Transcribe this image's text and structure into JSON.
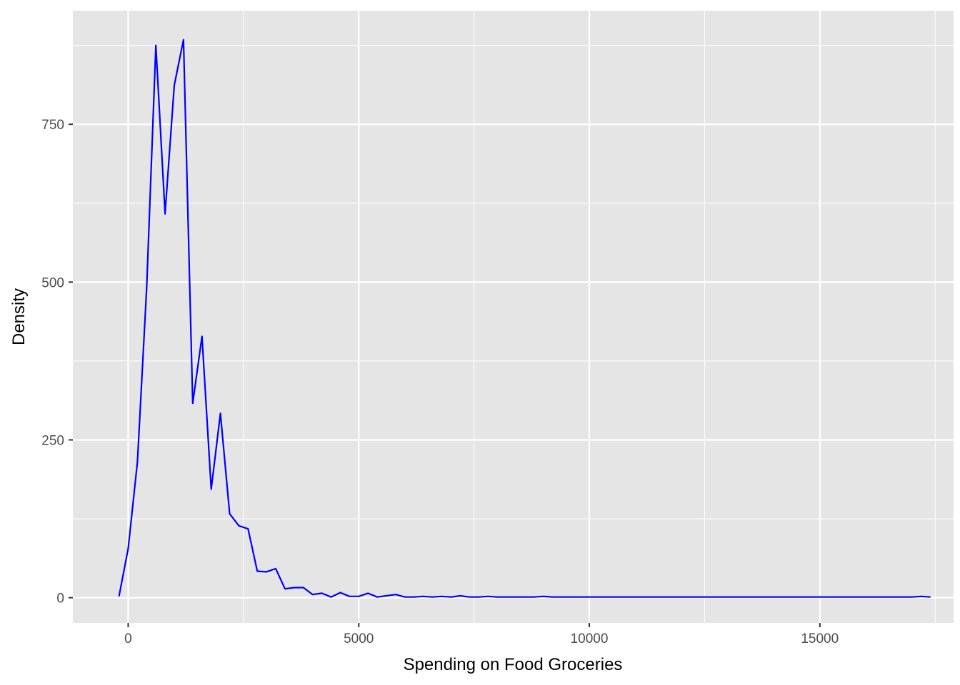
{
  "chart_data": {
    "type": "line",
    "title": "",
    "xlabel": "Spending on Food Groceries",
    "ylabel": "Density",
    "xlim": [
      -1200,
      17900
    ],
    "ylim": [
      -40,
      930
    ],
    "grid": true,
    "panel_background": "#e5e5e5",
    "grid_color": "#ffffff",
    "line_color": "#0000ff",
    "x_ticks": [
      0,
      5000,
      10000,
      15000
    ],
    "x_tick_labels": [
      "0",
      "5000",
      "10000",
      "15000"
    ],
    "y_ticks": [
      0,
      250,
      500,
      750
    ],
    "y_tick_labels": [
      "0",
      "250",
      "500",
      "750"
    ],
    "series": [
      {
        "x": [
          -200,
          0,
          200,
          400,
          600,
          800,
          1000,
          1200,
          1400,
          1600,
          1800,
          2000,
          2200,
          2400,
          2600,
          2800,
          3000,
          3200,
          3400,
          3600,
          3800,
          4000,
          4200,
          4400,
          4600,
          4800,
          5000,
          5200,
          5400,
          5600,
          5800,
          6000,
          6200,
          6400,
          6600,
          6800,
          7000,
          7200,
          7400,
          7600,
          7800,
          8000,
          8200,
          8400,
          8600,
          8800,
          9000,
          9200,
          9400,
          9600,
          9800,
          10000,
          10500,
          11000,
          11500,
          12000,
          12500,
          13000,
          13500,
          14000,
          14500,
          15000,
          15500,
          16000,
          16500,
          17000,
          17200,
          17400
        ],
        "y": [
          2,
          78,
          215,
          490,
          875,
          608,
          812,
          884,
          308,
          414,
          172,
          292,
          133,
          114,
          109,
          42,
          41,
          46,
          14,
          16,
          16,
          5,
          7,
          1,
          8,
          2,
          2,
          7,
          1,
          3,
          5,
          1,
          1,
          2,
          1,
          2,
          1,
          3,
          1,
          1,
          2,
          1,
          1,
          1,
          1,
          1,
          2,
          1,
          1,
          1,
          1,
          1,
          1,
          1,
          1,
          1,
          1,
          1,
          1,
          1,
          1,
          1,
          1,
          1,
          1,
          1,
          2,
          1
        ]
      }
    ]
  }
}
